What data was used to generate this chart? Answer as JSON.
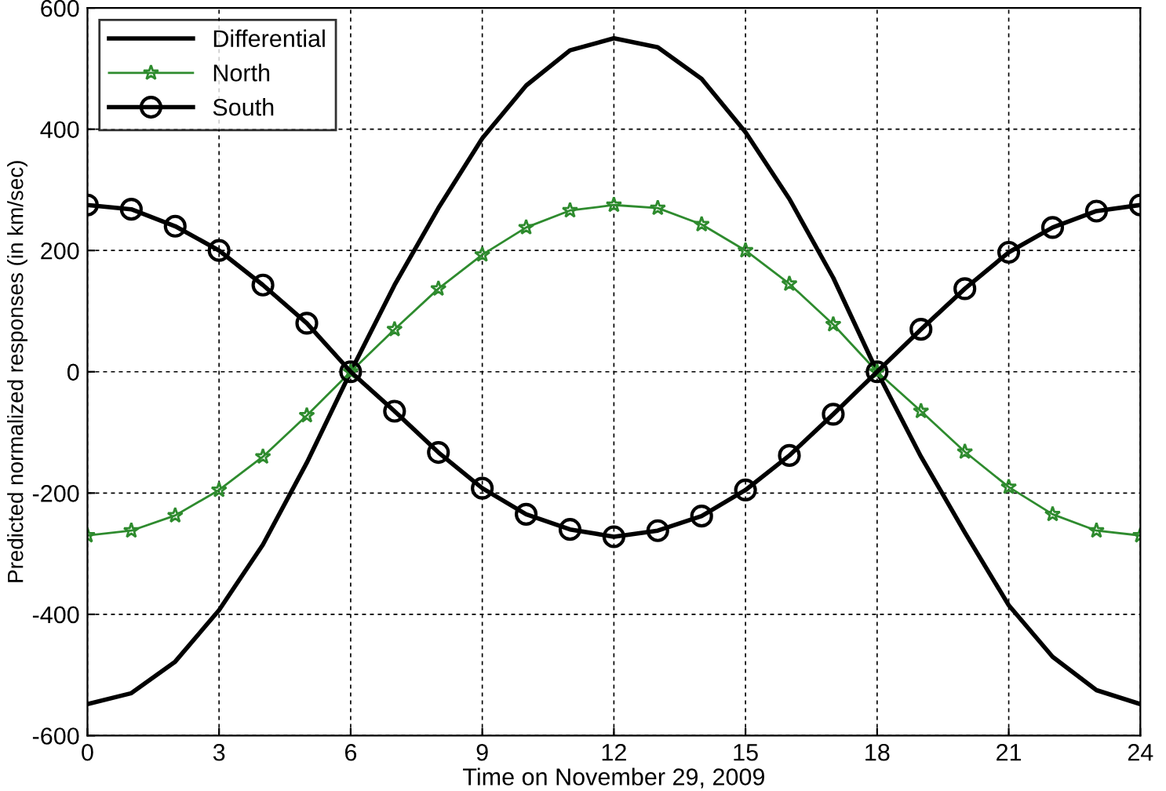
{
  "chart_data": {
    "type": "line",
    "xlabel": "Time on November 29, 2009",
    "ylabel": "Predicted normalized responses (in km/sec)",
    "x": [
      0,
      1,
      2,
      3,
      4,
      5,
      6,
      7,
      8,
      9,
      10,
      11,
      12,
      13,
      14,
      15,
      16,
      17,
      18,
      19,
      20,
      21,
      22,
      23,
      24
    ],
    "series": [
      {
        "name": "Differential",
        "color": "#000000",
        "marker": "none",
        "values": [
          -548,
          -530,
          -478,
          -393,
          -285,
          -150,
          0,
          143,
          270,
          385,
          472,
          530,
          550,
          535,
          483,
          395,
          285,
          155,
          0,
          -140,
          -265,
          -385,
          -470,
          -525,
          -548
        ]
      },
      {
        "name": "North",
        "color": "#2e8b2e",
        "marker": "star",
        "values": [
          -270,
          -262,
          -237,
          -195,
          -140,
          -72,
          0,
          70,
          137,
          193,
          238,
          266,
          275,
          270,
          243,
          200,
          145,
          78,
          0,
          -65,
          -132,
          -190,
          -235,
          -262,
          -270
        ]
      },
      {
        "name": "South",
        "color": "#000000",
        "marker": "circle",
        "values": [
          275,
          268,
          240,
          200,
          143,
          80,
          0,
          -65,
          -133,
          -192,
          -235,
          -260,
          -272,
          -262,
          -238,
          -195,
          -138,
          -70,
          0,
          70,
          137,
          197,
          238,
          265,
          275
        ]
      }
    ],
    "xlim": [
      0,
      24
    ],
    "xticks": [
      0,
      3,
      6,
      9,
      12,
      15,
      18,
      21,
      24
    ],
    "ylim": [
      -600,
      600
    ],
    "yticks": [
      -600,
      -400,
      -200,
      0,
      200,
      400,
      600
    ],
    "grid": true,
    "legend": "top left",
    "line_style": "solid"
  }
}
